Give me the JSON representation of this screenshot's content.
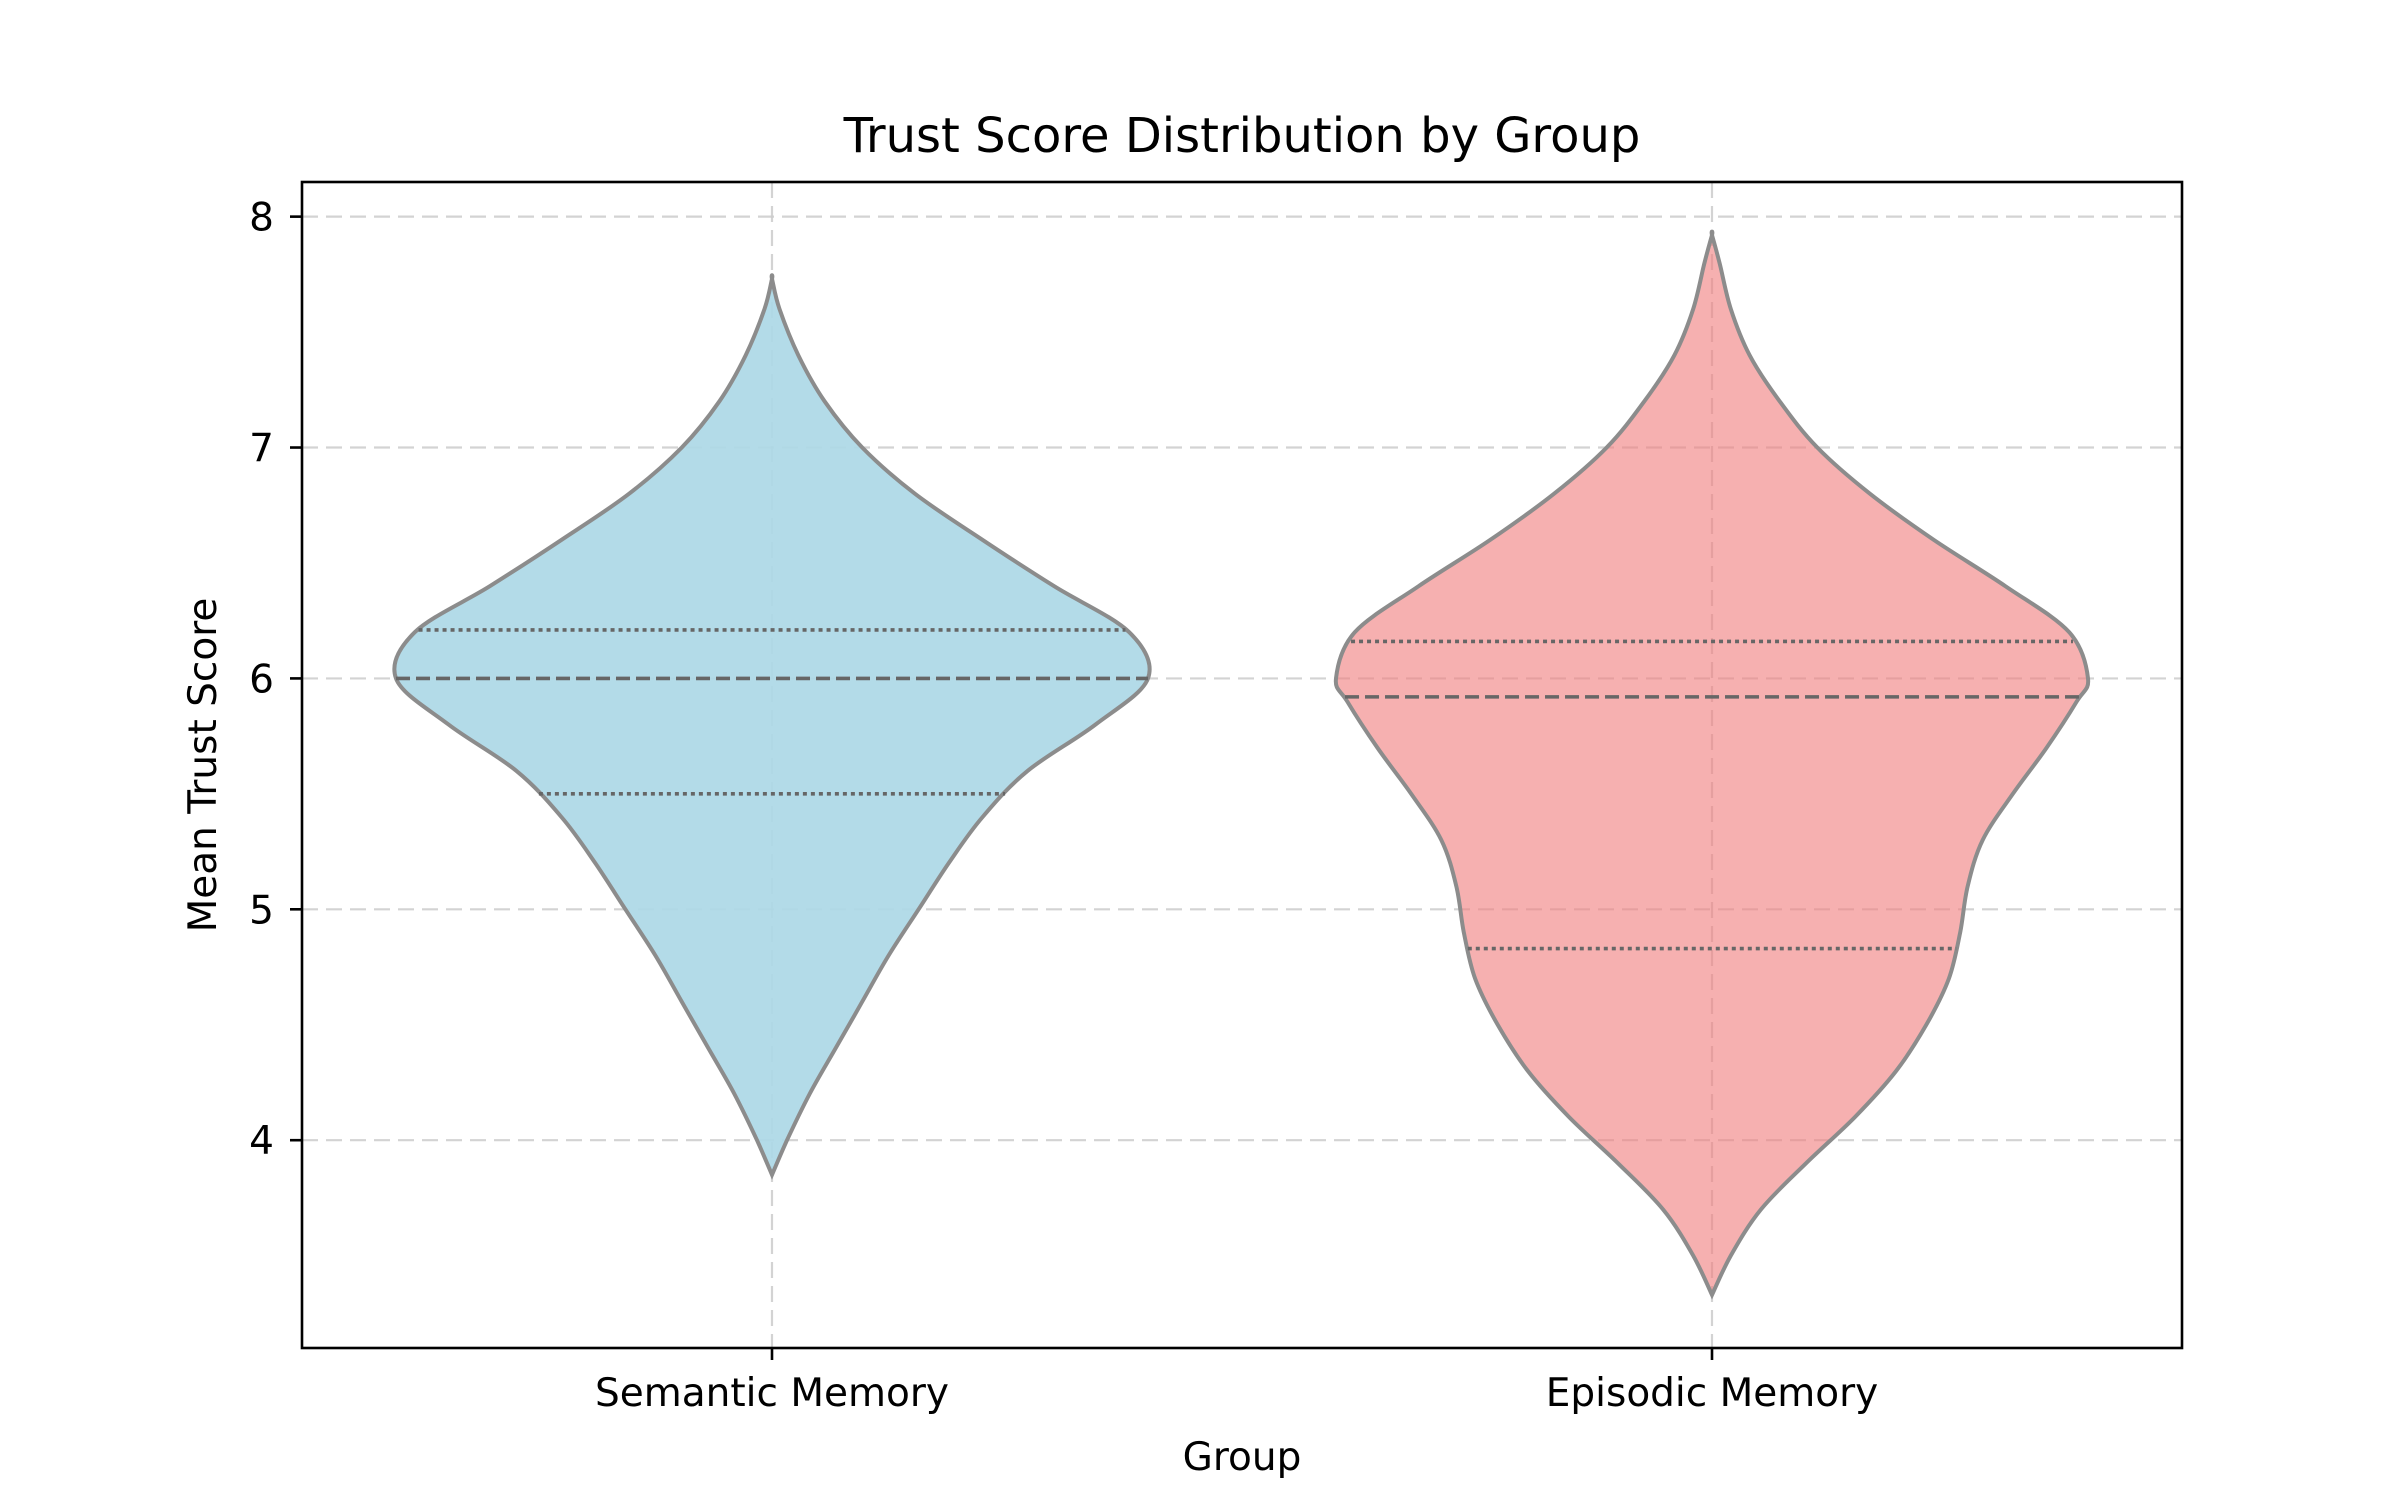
{
  "chart_data": {
    "type": "violin",
    "title": "Trust Score Distribution by Group",
    "xlabel": "Group",
    "ylabel": "Mean Trust Score",
    "categories": [
      "Semantic Memory",
      "Episodic Memory"
    ],
    "ylim": [
      3.1,
      8.15
    ],
    "yticks": [
      4,
      5,
      6,
      7,
      8
    ],
    "grid": true,
    "series": [
      {
        "category": "Semantic Memory",
        "color": "#add8e6",
        "min": 3.85,
        "max": 7.73,
        "q1": 5.5,
        "median": 6.0,
        "q3": 6.21,
        "density": [
          [
            3.85,
            0.0
          ],
          [
            4.0,
            0.04
          ],
          [
            4.2,
            0.1
          ],
          [
            4.4,
            0.17
          ],
          [
            4.6,
            0.24
          ],
          [
            4.8,
            0.31
          ],
          [
            5.0,
            0.39
          ],
          [
            5.2,
            0.47
          ],
          [
            5.4,
            0.56
          ],
          [
            5.6,
            0.68
          ],
          [
            5.8,
            0.86
          ],
          [
            6.0,
            1.0
          ],
          [
            6.2,
            0.95
          ],
          [
            6.4,
            0.75
          ],
          [
            6.6,
            0.56
          ],
          [
            6.8,
            0.38
          ],
          [
            7.0,
            0.24
          ],
          [
            7.2,
            0.14
          ],
          [
            7.4,
            0.07
          ],
          [
            7.6,
            0.02
          ],
          [
            7.73,
            0.0
          ]
        ]
      },
      {
        "category": "Episodic Memory",
        "color": "#f08080",
        "min": 3.33,
        "max": 7.92,
        "q1": 4.83,
        "median": 5.92,
        "q3": 6.16,
        "density": [
          [
            3.33,
            0.0
          ],
          [
            3.5,
            0.05
          ],
          [
            3.7,
            0.13
          ],
          [
            3.9,
            0.25
          ],
          [
            4.1,
            0.38
          ],
          [
            4.3,
            0.49
          ],
          [
            4.5,
            0.57
          ],
          [
            4.7,
            0.63
          ],
          [
            4.9,
            0.66
          ],
          [
            5.1,
            0.68
          ],
          [
            5.3,
            0.72
          ],
          [
            5.5,
            0.8
          ],
          [
            5.7,
            0.89
          ],
          [
            5.9,
            0.97
          ],
          [
            6.0,
            1.0
          ],
          [
            6.2,
            0.95
          ],
          [
            6.4,
            0.78
          ],
          [
            6.6,
            0.59
          ],
          [
            6.8,
            0.42
          ],
          [
            7.0,
            0.28
          ],
          [
            7.2,
            0.18
          ],
          [
            7.4,
            0.1
          ],
          [
            7.6,
            0.05
          ],
          [
            7.8,
            0.02
          ],
          [
            7.92,
            0.0
          ]
        ]
      }
    ]
  }
}
